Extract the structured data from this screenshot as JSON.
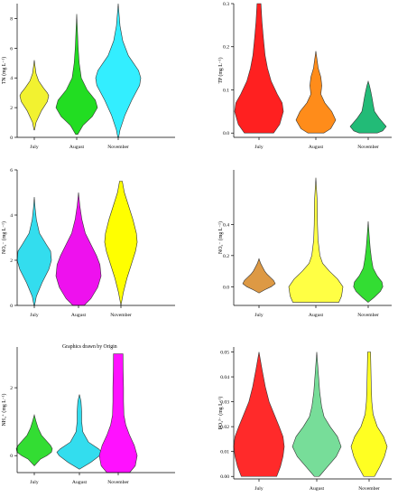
{
  "notes": [
    "Graphics drawn by Origin"
  ],
  "chart_data": [
    {
      "type": "violin",
      "ylabel": "TN (mg L⁻¹)",
      "ylim": [
        0,
        9
      ],
      "yticks": [
        "0",
        "2",
        "4",
        "6",
        "8"
      ],
      "ytick_values": [
        0,
        2,
        4,
        6,
        8
      ],
      "categories": [
        "July",
        "August",
        "November"
      ],
      "colors": [
        "#f2f230",
        "#22dd22",
        "#33eeff"
      ],
      "series": [
        {
          "y": [
            0.5,
            1.0,
            1.8,
            2.4,
            2.8,
            3.0,
            3.3,
            3.8,
            4.3,
            4.8,
            5.2
          ],
          "w": [
            0.02,
            0.12,
            0.5,
            0.9,
            1.0,
            0.9,
            0.65,
            0.3,
            0.12,
            0.05,
            0.0
          ]
        },
        {
          "y": [
            0.2,
            0.8,
            1.4,
            2.0,
            2.5,
            3.2,
            4.0,
            5.0,
            6.0,
            7.0,
            8.3
          ],
          "w": [
            0.05,
            0.3,
            0.75,
            1.0,
            0.9,
            0.5,
            0.22,
            0.12,
            0.07,
            0.04,
            0.0
          ]
        },
        {
          "y": [
            0.0,
            0.5,
            1.5,
            2.5,
            3.5,
            4.0,
            4.5,
            5.5,
            6.5,
            7.5,
            9.0
          ],
          "w": [
            0.02,
            0.08,
            0.3,
            0.6,
            0.95,
            1.0,
            0.9,
            0.45,
            0.2,
            0.08,
            0.0
          ]
        }
      ]
    },
    {
      "type": "violin",
      "ylabel": "TP (mg L⁻¹)",
      "ylim": [
        -0.01,
        0.3
      ],
      "yticks": [
        "0.0",
        "0.1",
        "0.2",
        "0.3"
      ],
      "ytick_values": [
        0.0,
        0.1,
        0.2,
        0.3
      ],
      "categories": [
        "July",
        "August",
        "November"
      ],
      "colors": [
        "#ff2020",
        "#ff8c1a",
        "#22bb77"
      ],
      "series": [
        {
          "y": [
            0.0,
            0.02,
            0.05,
            0.07,
            0.09,
            0.12,
            0.15,
            0.18,
            0.22,
            0.26,
            0.3
          ],
          "w": [
            0.6,
            0.85,
            1.0,
            0.95,
            0.75,
            0.5,
            0.35,
            0.25,
            0.18,
            0.12,
            0.08
          ]
        },
        {
          "y": [
            0.0,
            0.01,
            0.03,
            0.05,
            0.07,
            0.09,
            0.11,
            0.13,
            0.15,
            0.17,
            0.19
          ],
          "w": [
            0.4,
            0.75,
            1.0,
            0.8,
            0.45,
            0.25,
            0.3,
            0.25,
            0.12,
            0.06,
            0.0
          ]
        },
        {
          "y": [
            0.0,
            0.005,
            0.015,
            0.025,
            0.035,
            0.05,
            0.065,
            0.08,
            0.095,
            0.11,
            0.12
          ],
          "w": [
            0.5,
            0.8,
            1.0,
            0.8,
            0.6,
            0.35,
            0.28,
            0.22,
            0.15,
            0.07,
            0.0
          ]
        }
      ]
    },
    {
      "type": "violin",
      "ylabel": "NO₃⁻ (mg L⁻¹)",
      "ylim": [
        0,
        6
      ],
      "yticks": [
        "0",
        "2",
        "4",
        "6"
      ],
      "ytick_values": [
        0,
        2,
        4,
        6
      ],
      "categories": [
        "July",
        "August",
        "November"
      ],
      "colors": [
        "#33ddee",
        "#ee11ee",
        "#ffff00"
      ],
      "series": [
        {
          "y": [
            0.0,
            0.4,
            1.0,
            1.6,
            2.0,
            2.4,
            2.7,
            3.2,
            3.8,
            4.3,
            4.8
          ],
          "w": [
            0.02,
            0.12,
            0.45,
            0.85,
            1.0,
            0.95,
            0.7,
            0.3,
            0.12,
            0.05,
            0.0
          ]
        },
        {
          "y": [
            0.0,
            0.3,
            0.8,
            1.3,
            1.8,
            2.2,
            2.7,
            3.2,
            3.8,
            4.4,
            5.0
          ],
          "w": [
            0.25,
            0.55,
            0.85,
            1.0,
            0.95,
            0.8,
            0.55,
            0.3,
            0.15,
            0.06,
            0.0
          ]
        },
        {
          "y": [
            0.0,
            0.6,
            1.2,
            1.8,
            2.4,
            2.8,
            3.2,
            3.8,
            4.4,
            5.0,
            5.5
          ],
          "w": [
            0.0,
            0.15,
            0.35,
            0.6,
            0.85,
            0.95,
            0.9,
            0.7,
            0.45,
            0.2,
            0.08
          ]
        }
      ]
    },
    {
      "type": "violin",
      "ylabel": "NO₂⁻ (mg L⁻¹)",
      "ylim": [
        -0.12,
        0.75
      ],
      "yticks": [
        "0.0",
        "0.2",
        "0.4"
      ],
      "ytick_values": [
        0.0,
        0.2,
        0.4
      ],
      "categories": [
        "July",
        "August",
        "November"
      ],
      "colors": [
        "#dd9944",
        "#ffff44",
        "#33dd33"
      ],
      "series": [
        {
          "y": [
            -0.04,
            -0.02,
            0.0,
            0.02,
            0.04,
            0.06,
            0.08,
            0.1,
            0.12,
            0.15,
            0.18
          ],
          "w": [
            0.0,
            0.35,
            0.75,
            1.0,
            0.9,
            0.7,
            0.5,
            0.35,
            0.25,
            0.1,
            0.0
          ]
        },
        {
          "y": [
            -0.1,
            -0.06,
            0.0,
            0.05,
            0.1,
            0.15,
            0.2,
            0.3,
            0.4,
            0.55,
            0.7
          ],
          "w": [
            0.85,
            0.95,
            1.0,
            0.8,
            0.5,
            0.25,
            0.15,
            0.08,
            0.06,
            0.05,
            0.0
          ]
        },
        {
          "y": [
            -0.1,
            -0.07,
            -0.03,
            0.0,
            0.03,
            0.07,
            0.12,
            0.18,
            0.25,
            0.33,
            0.42
          ],
          "w": [
            0.0,
            0.35,
            0.75,
            0.9,
            0.85,
            0.55,
            0.3,
            0.2,
            0.12,
            0.06,
            0.0
          ]
        }
      ]
    },
    {
      "type": "violin",
      "ylabel": "NH₄⁺ (mg L⁻¹)",
      "ylim": [
        -0.5,
        3.2
      ],
      "yticks": [
        "0",
        "2"
      ],
      "ytick_values": [
        0,
        2
      ],
      "categories": [
        "July",
        "August",
        "November"
      ],
      "colors": [
        "#33dd33",
        "#33ddee",
        "#ff11ff"
      ],
      "series": [
        {
          "y": [
            -0.3,
            -0.1,
            0.0,
            0.1,
            0.2,
            0.3,
            0.45,
            0.6,
            0.8,
            1.0,
            1.2
          ],
          "w": [
            0.0,
            0.35,
            0.7,
            0.95,
            1.0,
            0.9,
            0.65,
            0.4,
            0.22,
            0.1,
            0.0
          ]
        },
        {
          "y": [
            -0.4,
            -0.2,
            0.0,
            0.1,
            0.2,
            0.4,
            0.7,
            1.0,
            1.3,
            1.6,
            1.8
          ],
          "w": [
            0.0,
            0.5,
            0.9,
            1.0,
            0.85,
            0.4,
            0.15,
            0.1,
            0.1,
            0.07,
            0.0
          ]
        },
        {
          "y": [
            -0.5,
            -0.3,
            0.0,
            0.3,
            0.6,
            0.9,
            1.2,
            1.6,
            2.0,
            2.5,
            3.0
          ],
          "w": [
            0.6,
            0.9,
            1.0,
            0.85,
            0.6,
            0.4,
            0.3,
            0.28,
            0.28,
            0.26,
            0.25
          ]
        }
      ]
    },
    {
      "type": "violin",
      "ylabel": "PO₄³⁻ (mg L⁻¹)",
      "ylim": [
        -0.001,
        0.052
      ],
      "yticks": [
        "0.00",
        "0.01",
        "0.02",
        "0.03",
        "0.04",
        "0.05"
      ],
      "ytick_values": [
        0.0,
        0.01,
        0.02,
        0.03,
        0.04,
        0.05
      ],
      "categories": [
        "July",
        "August",
        "November"
      ],
      "colors": [
        "#ff2a2a",
        "#77dd99",
        "#ffff22"
      ],
      "series": [
        {
          "y": [
            0.0,
            0.004,
            0.008,
            0.012,
            0.016,
            0.02,
            0.025,
            0.03,
            0.036,
            0.043,
            0.05
          ],
          "w": [
            0.7,
            0.85,
            0.95,
            1.0,
            0.95,
            0.8,
            0.6,
            0.4,
            0.25,
            0.12,
            0.0
          ]
        },
        {
          "y": [
            0.0,
            0.004,
            0.008,
            0.012,
            0.016,
            0.02,
            0.024,
            0.028,
            0.034,
            0.042,
            0.05
          ],
          "w": [
            0.1,
            0.45,
            0.8,
            1.0,
            0.85,
            0.55,
            0.3,
            0.2,
            0.12,
            0.06,
            0.0
          ]
        },
        {
          "y": [
            0.0,
            0.004,
            0.008,
            0.012,
            0.016,
            0.02,
            0.025,
            0.03,
            0.036,
            0.043,
            0.05
          ],
          "w": [
            0.3,
            0.6,
            0.85,
            1.0,
            0.8,
            0.45,
            0.22,
            0.15,
            0.12,
            0.1,
            0.08
          ]
        }
      ]
    }
  ]
}
